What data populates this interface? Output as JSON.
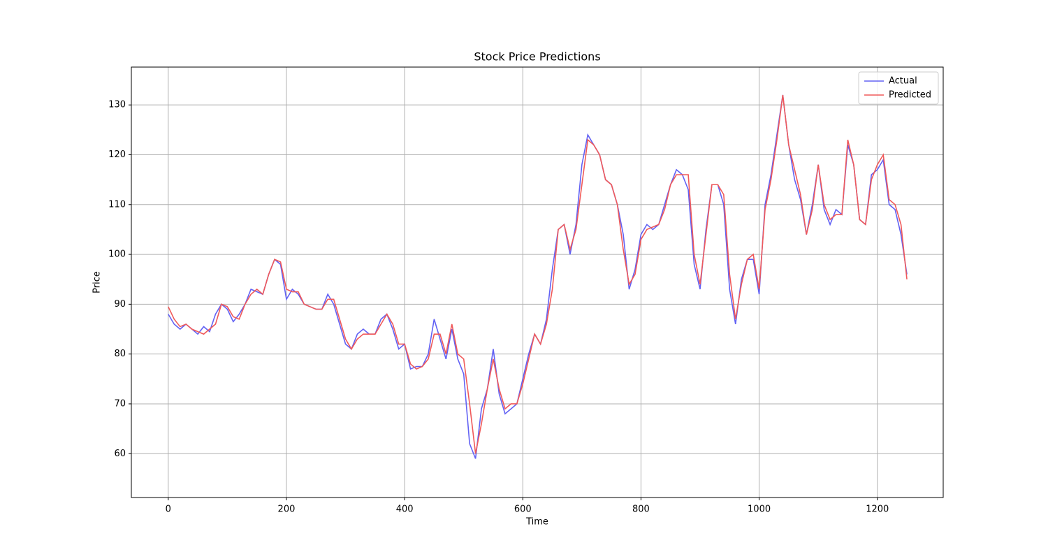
{
  "chart_data": {
    "type": "line",
    "title": "Stock Price Predictions",
    "x_label": "Time",
    "y_label": "Price",
    "x": [
      0,
      10,
      20,
      30,
      40,
      50,
      60,
      70,
      80,
      90,
      100,
      110,
      120,
      130,
      140,
      150,
      160,
      170,
      180,
      190,
      200,
      210,
      220,
      230,
      240,
      250,
      260,
      270,
      280,
      290,
      300,
      310,
      320,
      330,
      340,
      350,
      360,
      370,
      380,
      390,
      400,
      410,
      420,
      430,
      440,
      450,
      460,
      470,
      480,
      490,
      500,
      510,
      520,
      530,
      540,
      550,
      560,
      570,
      580,
      590,
      600,
      610,
      620,
      630,
      640,
      650,
      660,
      670,
      680,
      690,
      700,
      710,
      720,
      730,
      740,
      750,
      760,
      770,
      780,
      790,
      800,
      810,
      820,
      830,
      840,
      850,
      860,
      870,
      880,
      890,
      900,
      910,
      920,
      930,
      940,
      950,
      960,
      970,
      980,
      990,
      1000,
      1010,
      1020,
      1030,
      1040,
      1050,
      1060,
      1070,
      1080,
      1090,
      1100,
      1110,
      1120,
      1130,
      1140,
      1150,
      1160,
      1170,
      1180,
      1190,
      1200,
      1210,
      1220,
      1230,
      1240,
      1250
    ],
    "series": [
      {
        "name": "Actual",
        "color": "#6262f4",
        "values": [
          88,
          86,
          85,
          86,
          85,
          84,
          85.5,
          84.5,
          88,
          90,
          89,
          86.5,
          88,
          90,
          93,
          92.5,
          92,
          96,
          99,
          98,
          91,
          93,
          92,
          90,
          89.5,
          89,
          89,
          92,
          90,
          86,
          82,
          81,
          84,
          85,
          84,
          84,
          87,
          88,
          85,
          81,
          82,
          77,
          77.5,
          77.5,
          80,
          87,
          83,
          79,
          85,
          79,
          76,
          62,
          59,
          69,
          73,
          81,
          72,
          68,
          69,
          70,
          75,
          80,
          84,
          82,
          87,
          97,
          105,
          106,
          100,
          106,
          118,
          124,
          122,
          120,
          115,
          114,
          110,
          104,
          93,
          97,
          104,
          106,
          105,
          106,
          110,
          114,
          117,
          116,
          113,
          98,
          93,
          105,
          114,
          114,
          110,
          93,
          86,
          95,
          99,
          99,
          92,
          110,
          116,
          124,
          132,
          122,
          115,
          111,
          104,
          110,
          118,
          109,
          106,
          109,
          108,
          122,
          118,
          107,
          106,
          116,
          117,
          119,
          110,
          109,
          104,
          96
        ]
      },
      {
        "name": "Predicted",
        "color": "#f05a5a",
        "values": [
          89.5,
          87,
          85.5,
          86,
          85,
          84.5,
          84,
          85,
          86,
          90,
          89.5,
          87.5,
          87,
          90,
          92,
          93,
          92,
          96,
          99,
          98.5,
          93,
          92.5,
          92.5,
          90,
          89.5,
          89,
          89,
          91,
          91,
          87,
          83,
          81,
          83,
          84,
          84,
          84,
          86,
          88,
          86,
          82,
          82,
          78,
          77,
          77.5,
          79,
          84,
          84,
          80,
          86,
          80,
          79,
          70,
          60,
          66,
          73,
          79,
          73,
          69,
          70,
          70,
          74,
          79,
          84,
          82,
          86,
          93,
          105,
          106,
          101,
          105,
          114,
          123,
          122,
          120,
          115,
          114,
          110,
          101,
          94,
          96,
          103,
          105,
          105.5,
          106,
          109,
          114,
          116,
          116,
          116,
          100,
          94,
          104,
          114,
          114,
          112,
          96,
          87,
          94,
          99,
          100,
          93,
          109,
          115,
          123,
          132,
          122,
          117,
          112,
          104,
          109,
          118,
          110,
          107,
          108,
          108,
          123,
          118,
          107,
          106,
          115,
          118,
          120,
          111,
          110,
          106,
          95
        ]
      }
    ],
    "xlim": [
      -62.45,
      1311.45
    ],
    "ylim": [
      51.2,
      137.6
    ],
    "xticks": [
      0,
      200,
      400,
      600,
      800,
      1000,
      1200
    ],
    "yticks": [
      60,
      70,
      80,
      90,
      100,
      110,
      120,
      130
    ],
    "grid": true,
    "legend": "upper right"
  }
}
